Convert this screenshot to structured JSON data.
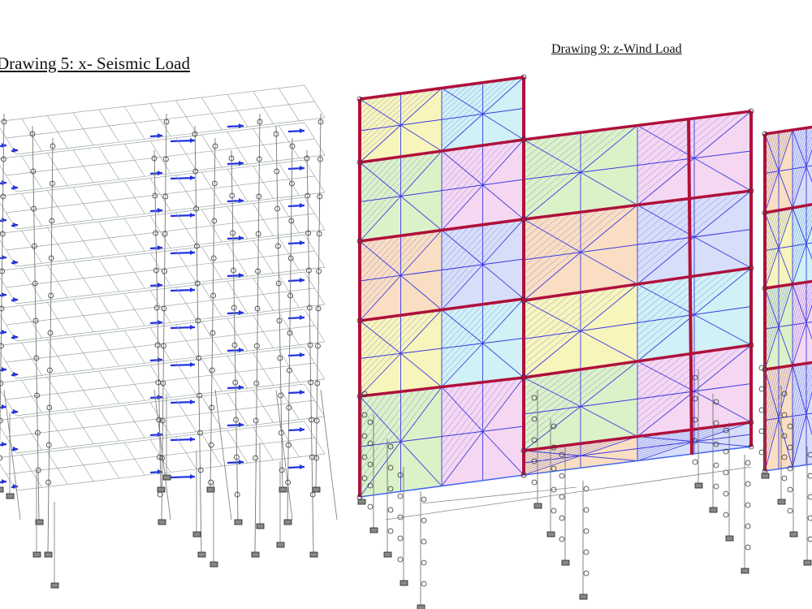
{
  "drawings": [
    {
      "title": "Drawing 5: x- Seismic Load"
    },
    {
      "title": "Drawing 9: z-Wind Load"
    }
  ]
}
